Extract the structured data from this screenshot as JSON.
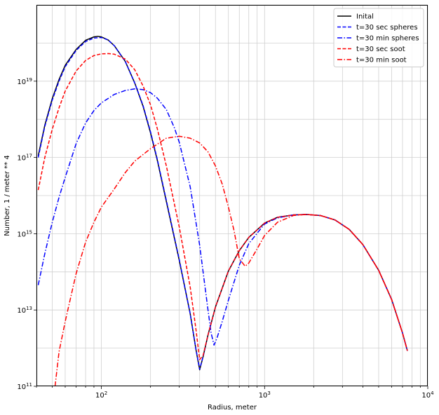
{
  "chart_data": {
    "type": "line",
    "xlabel": "Radius, meter",
    "ylabel": "Number, 1 / meter ** 4",
    "xscale": "log",
    "yscale": "log",
    "xlim": [
      40,
      10000
    ],
    "ylim": [
      100000000000.0,
      1e+21
    ],
    "grid": true,
    "legend_position": "top-right",
    "x_ticks": [
      {
        "value": 100,
        "base": "10",
        "exp": "2"
      },
      {
        "value": 1000,
        "base": "10",
        "exp": "3"
      },
      {
        "value": 10000,
        "base": "10",
        "exp": "4"
      }
    ],
    "y_ticks": [
      {
        "value": 100000000000.0,
        "base": "10",
        "exp": "11"
      },
      {
        "value": 10000000000000.0,
        "base": "10",
        "exp": "13"
      },
      {
        "value": 1000000000000000.0,
        "base": "10",
        "exp": "15"
      },
      {
        "value": 1e+17,
        "base": "10",
        "exp": "17"
      },
      {
        "value": 1e+19,
        "base": "10",
        "exp": "19"
      }
    ],
    "series": [
      {
        "name": "Inital",
        "color": "#000000",
        "dash": "solid",
        "points": [
          [
            41,
            1.1e+17
          ],
          [
            45,
            7e+17
          ],
          [
            50,
            3.5e+18
          ],
          [
            55,
            1.1e+19
          ],
          [
            60,
            2.6e+19
          ],
          [
            70,
            6.8e+19
          ],
          [
            80,
            1.18e+20
          ],
          [
            90,
            1.45e+20
          ],
          [
            95,
            1.5e+20
          ],
          [
            100,
            1.45e+20
          ],
          [
            110,
            1.2e+20
          ],
          [
            120,
            8.5e+19
          ],
          [
            140,
            3.3e+19
          ],
          [
            160,
            9e+18
          ],
          [
            180,
            2.2e+18
          ],
          [
            200,
            4.4e+17
          ],
          [
            220,
            8.5e+16
          ],
          [
            250,
            7000000000000000.0
          ],
          [
            300,
            200000000000000.0
          ],
          [
            350,
            8000000000000.0
          ],
          [
            380,
            900000000000.0
          ],
          [
            400,
            270000000000.0
          ],
          [
            420,
            600000000000.0
          ],
          [
            450,
            2200000000000.0
          ],
          [
            500,
            12000000000000.0
          ],
          [
            600,
            105000000000000.0
          ],
          [
            700,
            360000000000000.0
          ],
          [
            800,
            800000000000000.0
          ],
          [
            1000,
            1900000000000000.0
          ],
          [
            1200,
            2700000000000000.0
          ],
          [
            1500,
            3100000000000000.0
          ],
          [
            1800,
            3200000000000000.0
          ],
          [
            2200,
            3000000000000000.0
          ],
          [
            2700,
            2300000000000000.0
          ],
          [
            3300,
            1300000000000000.0
          ],
          [
            4000,
            520000000000000.0
          ],
          [
            5000,
            110000000000000.0
          ],
          [
            6000,
            19000000000000.0
          ],
          [
            7000,
            2500000000000.0
          ],
          [
            7500,
            850000000000.0
          ]
        ]
      },
      {
        "name": "t=30 sec spheres",
        "color": "#0000ff",
        "dash": "dashed",
        "points": [
          [
            41,
            1e+17
          ],
          [
            45,
            6.5e+17
          ],
          [
            50,
            3.2e+18
          ],
          [
            55,
            1e+19
          ],
          [
            60,
            2.4e+19
          ],
          [
            70,
            6.4e+19
          ],
          [
            80,
            1.1e+20
          ],
          [
            90,
            1.35e+20
          ],
          [
            100,
            1.4e+20
          ],
          [
            110,
            1.2e+20
          ],
          [
            120,
            8.5e+19
          ],
          [
            140,
            3.3e+19
          ],
          [
            160,
            9e+18
          ],
          [
            180,
            2.3e+18
          ],
          [
            200,
            4.7e+17
          ],
          [
            220,
            9e+16
          ],
          [
            250,
            7500000000000000.0
          ],
          [
            300,
            210000000000000.0
          ],
          [
            350,
            8000000000000.0
          ],
          [
            380,
            900000000000.0
          ],
          [
            400,
            280000000000.0
          ],
          [
            420,
            600000000000.0
          ],
          [
            450,
            2200000000000.0
          ],
          [
            500,
            12000000000000.0
          ],
          [
            600,
            105000000000000.0
          ],
          [
            700,
            360000000000000.0
          ],
          [
            800,
            800000000000000.0
          ],
          [
            1000,
            1900000000000000.0
          ],
          [
            1200,
            2700000000000000.0
          ],
          [
            1500,
            3100000000000000.0
          ],
          [
            1800,
            3200000000000000.0
          ],
          [
            2200,
            3000000000000000.0
          ],
          [
            2700,
            2300000000000000.0
          ],
          [
            3300,
            1300000000000000.0
          ],
          [
            4000,
            520000000000000.0
          ],
          [
            5000,
            110000000000000.0
          ],
          [
            6000,
            19000000000000.0
          ],
          [
            7000,
            2500000000000.0
          ],
          [
            7500,
            850000000000.0
          ]
        ]
      },
      {
        "name": "t=30 min spheres",
        "color": "#0000ff",
        "dash": "dashdot",
        "points": [
          [
            41,
            45000000000000.0
          ],
          [
            45,
            300000000000000.0
          ],
          [
            50,
            2000000000000000.0
          ],
          [
            55,
            9000000000000000.0
          ],
          [
            60,
            3e+16
          ],
          [
            70,
            2.3e+17
          ],
          [
            80,
            8e+17
          ],
          [
            90,
            1.7e+18
          ],
          [
            100,
            2.7e+18
          ],
          [
            120,
            4.5e+18
          ],
          [
            140,
            5.7e+18
          ],
          [
            160,
            6.3e+18
          ],
          [
            180,
            6e+18
          ],
          [
            200,
            5e+18
          ],
          [
            220,
            3.6e+18
          ],
          [
            250,
            1.8e+18
          ],
          [
            280,
            6e+17
          ],
          [
            300,
            2.5e+17
          ],
          [
            350,
            1.7e+16
          ],
          [
            400,
            500000000000000.0
          ],
          [
            450,
            10000000000000.0
          ],
          [
            470,
            2500000000000.0
          ],
          [
            490,
            1200000000000.0
          ],
          [
            510,
            1800000000000.0
          ],
          [
            550,
            5000000000000.0
          ],
          [
            600,
            18000000000000.0
          ],
          [
            700,
            150000000000000.0
          ],
          [
            800,
            550000000000000.0
          ],
          [
            1000,
            1800000000000000.0
          ],
          [
            1200,
            2600000000000000.0
          ],
          [
            1500,
            3100000000000000.0
          ],
          [
            1800,
            3200000000000000.0
          ],
          [
            2200,
            3000000000000000.0
          ],
          [
            2700,
            2300000000000000.0
          ],
          [
            3300,
            1300000000000000.0
          ],
          [
            4000,
            520000000000000.0
          ],
          [
            5000,
            110000000000000.0
          ],
          [
            6000,
            19000000000000.0
          ],
          [
            7000,
            2500000000000.0
          ],
          [
            7500,
            850000000000.0
          ]
        ]
      },
      {
        "name": "t=30 sec soot",
        "color": "#ff0000",
        "dash": "dashed",
        "points": [
          [
            41,
            1.4e+16
          ],
          [
            45,
            1e+17
          ],
          [
            50,
            5.5e+17
          ],
          [
            55,
            2e+18
          ],
          [
            60,
            5.5e+18
          ],
          [
            70,
            1.85e+19
          ],
          [
            80,
            3.5e+19
          ],
          [
            90,
            4.7e+19
          ],
          [
            100,
            5.2e+19
          ],
          [
            110,
            5.3e+19
          ],
          [
            120,
            5.1e+19
          ],
          [
            140,
            3.8e+19
          ],
          [
            160,
            2e+19
          ],
          [
            180,
            7.5e+18
          ],
          [
            200,
            2.4e+18
          ],
          [
            220,
            5.7e+17
          ],
          [
            250,
            6e+16
          ],
          [
            300,
            1500000000000000.0
          ],
          [
            350,
            40000000000000.0
          ],
          [
            380,
            3000000000000.0
          ],
          [
            400,
            500000000000.0
          ],
          [
            420,
            650000000000.0
          ],
          [
            450,
            2200000000000.0
          ],
          [
            500,
            12000000000000.0
          ],
          [
            600,
            105000000000000.0
          ],
          [
            700,
            360000000000000.0
          ],
          [
            800,
            800000000000000.0
          ],
          [
            1000,
            1900000000000000.0
          ],
          [
            1200,
            2700000000000000.0
          ],
          [
            1500,
            3100000000000000.0
          ],
          [
            1800,
            3200000000000000.0
          ],
          [
            2200,
            3000000000000000.0
          ],
          [
            2700,
            2300000000000000.0
          ],
          [
            3300,
            1300000000000000.0
          ],
          [
            4000,
            520000000000000.0
          ],
          [
            5000,
            110000000000000.0
          ],
          [
            6000,
            19000000000000.0
          ],
          [
            7000,
            2500000000000.0
          ],
          [
            7500,
            850000000000.0
          ]
        ]
      },
      {
        "name": "t=30 min soot",
        "color": "#ff0000",
        "dash": "dashdot",
        "points": [
          [
            52,
            100000000000.0
          ],
          [
            55,
            800000000000.0
          ],
          [
            60,
            5000000000000.0
          ],
          [
            70,
            90000000000000.0
          ],
          [
            80,
            600000000000000.0
          ],
          [
            90,
            2000000000000000.0
          ],
          [
            100,
            5000000000000000.0
          ],
          [
            120,
            1.5e+16
          ],
          [
            140,
            4e+16
          ],
          [
            160,
            8e+16
          ],
          [
            200,
            1.7e+17
          ],
          [
            250,
            3.2e+17
          ],
          [
            300,
            3.6e+17
          ],
          [
            350,
            3.2e+17
          ],
          [
            400,
            2.4e+17
          ],
          [
            450,
            1.4e+17
          ],
          [
            500,
            6e+16
          ],
          [
            550,
            2e+16
          ],
          [
            600,
            5000000000000000.0
          ],
          [
            650,
            1200000000000000.0
          ],
          [
            700,
            220000000000000.0
          ],
          [
            760,
            140000000000000.0
          ],
          [
            800,
            170000000000000.0
          ],
          [
            900,
            400000000000000.0
          ],
          [
            1000,
            900000000000000.0
          ],
          [
            1200,
            2000000000000000.0
          ],
          [
            1500,
            3000000000000000.0
          ],
          [
            1800,
            3200000000000000.0
          ],
          [
            2200,
            3000000000000000.0
          ],
          [
            2700,
            2300000000000000.0
          ],
          [
            3300,
            1300000000000000.0
          ],
          [
            4000,
            520000000000000.0
          ],
          [
            5000,
            110000000000000.0
          ],
          [
            6000,
            19000000000000.0
          ],
          [
            7000,
            2500000000000.0
          ],
          [
            7500,
            850000000000.0
          ]
        ]
      }
    ]
  }
}
